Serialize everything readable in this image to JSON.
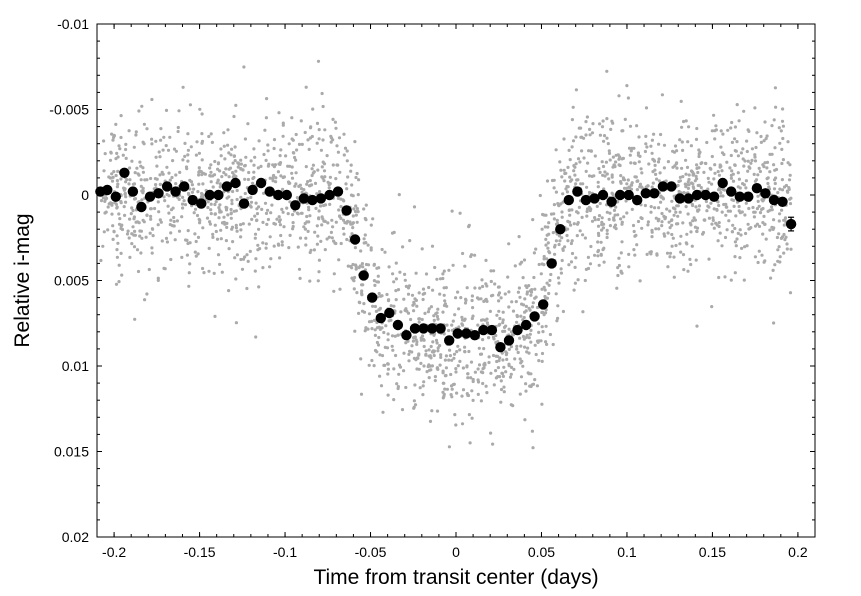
{
  "chart_data": {
    "type": "scatter",
    "xlabel": "Time from transit center (days)",
    "ylabel": "Relative i-mag",
    "xlim": [
      -0.21,
      0.21
    ],
    "ylim": [
      -0.01,
      0.02
    ],
    "y_inverted": true,
    "grid": false,
    "x_ticks": [
      -0.2,
      -0.15,
      -0.1,
      -0.05,
      0,
      0.05,
      0.1,
      0.15,
      0.2
    ],
    "x_tick_labels": [
      "-0.2",
      "-0.15",
      "-0.1",
      "-0.05",
      "0",
      "0.05",
      "0.1",
      "0.15",
      "0.2"
    ],
    "y_ticks": [
      -0.01,
      -0.005,
      0,
      0.005,
      0.01,
      0.015,
      0.02
    ],
    "y_tick_labels": [
      "-0.01",
      "-0.005",
      "0",
      "0.005",
      "0.01",
      "0.015",
      "0.02"
    ],
    "colors": {
      "raw": "#aaaaaa",
      "binned": "#000000"
    },
    "binned": {
      "x": [
        -0.208,
        -0.204,
        -0.199,
        -0.194,
        -0.189,
        -0.184,
        -0.179,
        -0.174,
        -0.169,
        -0.164,
        -0.159,
        -0.154,
        -0.149,
        -0.144,
        -0.139,
        -0.134,
        -0.129,
        -0.124,
        -0.119,
        -0.114,
        -0.109,
        -0.104,
        -0.099,
        -0.094,
        -0.089,
        -0.084,
        -0.079,
        -0.074,
        -0.069,
        -0.064,
        -0.059,
        -0.054,
        -0.049,
        -0.044,
        -0.039,
        -0.034,
        -0.029,
        -0.024,
        -0.019,
        -0.014,
        -0.009,
        -0.004,
        0.001,
        0.006,
        0.011,
        0.016,
        0.021,
        0.026,
        0.031,
        0.036,
        0.041,
        0.046,
        0.051,
        0.056,
        0.061,
        0.066,
        0.071,
        0.076,
        0.081,
        0.086,
        0.091,
        0.096,
        0.101,
        0.106,
        0.111,
        0.116,
        0.121,
        0.126,
        0.131,
        0.136,
        0.141,
        0.146,
        0.151,
        0.156,
        0.161,
        0.166,
        0.171,
        0.176,
        0.181,
        0.186,
        0.191,
        0.196
      ],
      "y": [
        -0.0002,
        -0.0003,
        0.0001,
        -0.0013,
        -0.0002,
        0.0007,
        0.0001,
        -0.0001,
        -0.0005,
        -0.0002,
        -0.0005,
        0.0003,
        0.0005,
        0.0,
        0.0,
        -0.0005,
        -0.0007,
        0.0005,
        -0.0003,
        -0.0007,
        -0.0002,
        0.0,
        0.0,
        0.0006,
        0.0002,
        0.0003,
        0.0002,
        0.0,
        -0.0002,
        0.0009,
        0.0026,
        0.0047,
        0.006,
        0.0072,
        0.0069,
        0.0076,
        0.0082,
        0.0078,
        0.0078,
        0.0078,
        0.0078,
        0.0085,
        0.0081,
        0.0081,
        0.0082,
        0.0079,
        0.0079,
        0.0089,
        0.0085,
        0.0079,
        0.0076,
        0.0071,
        0.0064,
        0.004,
        0.002,
        0.0003,
        -0.0002,
        0.0003,
        0.0002,
        0.0,
        0.0004,
        0.0,
        0.0,
        0.0003,
        -0.0001,
        -0.0001,
        -0.0005,
        -0.0005,
        0.0002,
        0.0002,
        0.0,
        0.0,
        0.0001,
        -0.0007,
        -0.0002,
        0.0001,
        0.0001,
        -0.0004,
        -0.0001,
        0.0003,
        0.0004,
        0.0017
      ],
      "last_point_error": 0.0004
    },
    "raw_scatter": {
      "seed": 7,
      "scatter_outside": 0.0022,
      "scatter_inside": 0.0022,
      "count": 2600
    }
  }
}
